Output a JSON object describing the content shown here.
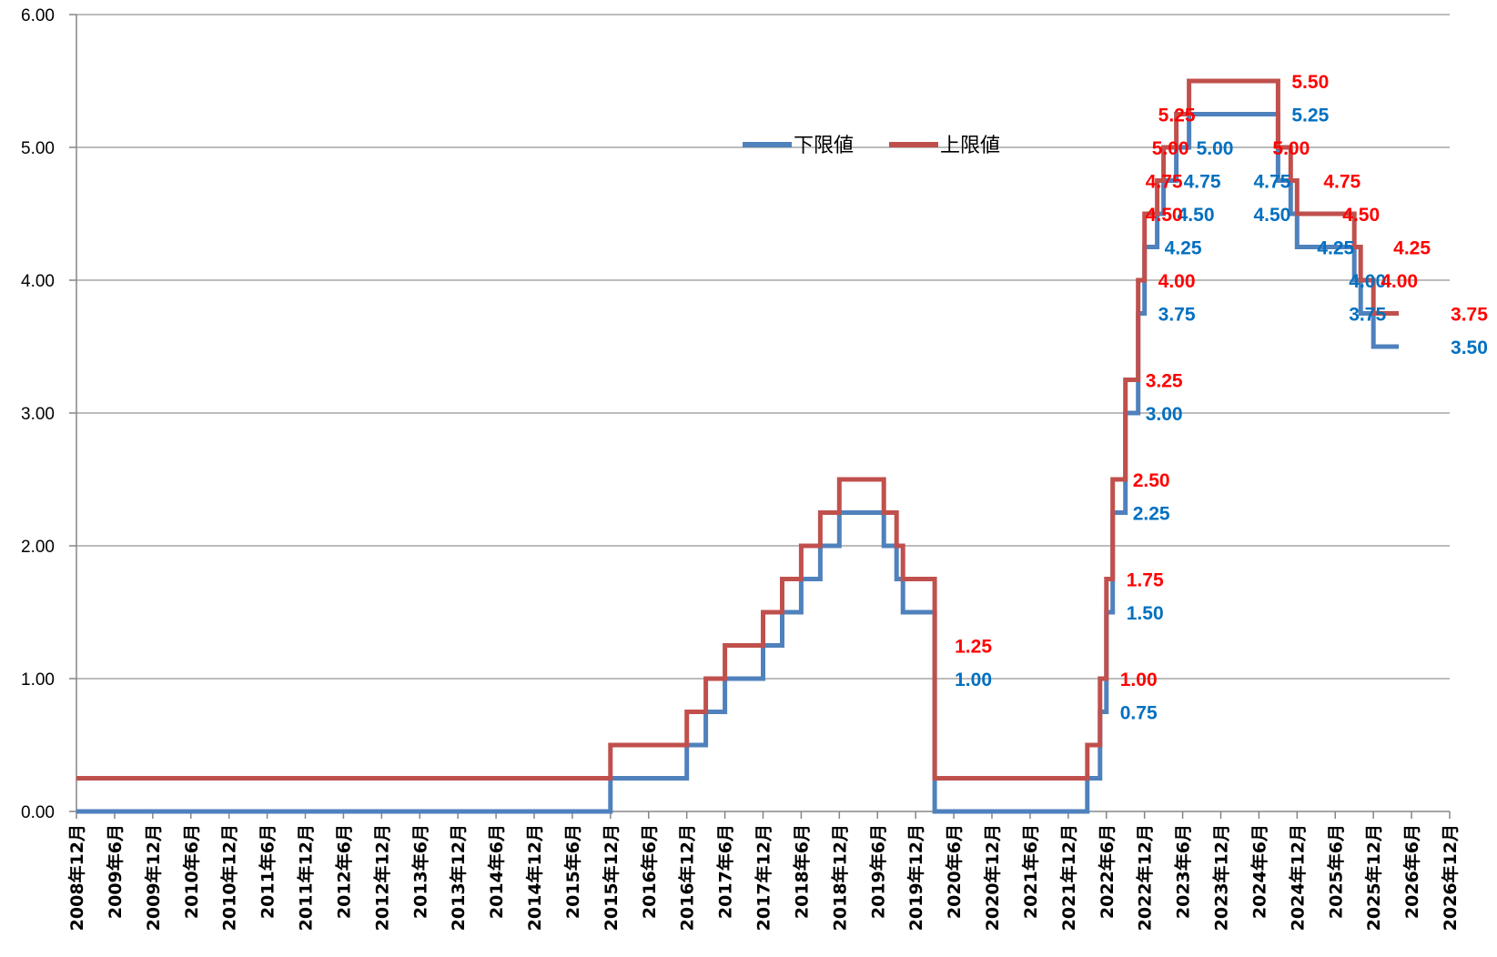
{
  "chart_data": {
    "type": "line",
    "step": true,
    "ylim": [
      0,
      6
    ],
    "yticks": [
      "0.00",
      "1.00",
      "2.00",
      "3.00",
      "4.00",
      "5.00",
      "6.00"
    ],
    "x_start": "2008-12",
    "x_end": "2026-12",
    "xticks": [
      "2008年12月",
      "2009年6月",
      "2009年12月",
      "2010年6月",
      "2010年12月",
      "2011年6月",
      "2011年12月",
      "2012年6月",
      "2012年12月",
      "2013年6月",
      "2013年12月",
      "2014年6月",
      "2014年12月",
      "2015年6月",
      "2015年12月",
      "2016年6月",
      "2016年12月",
      "2017年6月",
      "2017年12月",
      "2018年6月",
      "2018年12月",
      "2019年6月",
      "2019年12月",
      "2020年6月",
      "2020年12月",
      "2021年6月",
      "2021年12月",
      "2022年6月",
      "2022年12月",
      "2023年6月",
      "2023年12月",
      "2024年6月",
      "2024年12月",
      "2025年6月",
      "2025年12月",
      "2026年6月",
      "2026年12月"
    ],
    "grid": true,
    "legend_position": "top-center",
    "series": [
      {
        "name": "下限値",
        "color": "#4F81BD",
        "label_color": "#0070C0",
        "points": [
          [
            "2008-12",
            0.0
          ],
          [
            "2015-12",
            0.25
          ],
          [
            "2016-12",
            0.5
          ],
          [
            "2017-03",
            0.75
          ],
          [
            "2017-06",
            1.0
          ],
          [
            "2017-12",
            1.25
          ],
          [
            "2018-03",
            1.5
          ],
          [
            "2018-06",
            1.75
          ],
          [
            "2018-09",
            2.0
          ],
          [
            "2018-12",
            2.25
          ],
          [
            "2019-07",
            2.0
          ],
          [
            "2019-09",
            1.75
          ],
          [
            "2019-10",
            1.5
          ],
          [
            "2020-03",
            1.0
          ],
          [
            "2020-03",
            0.0
          ],
          [
            "2022-03",
            0.25
          ],
          [
            "2022-05",
            0.75
          ],
          [
            "2022-06",
            1.5
          ],
          [
            "2022-07",
            2.25
          ],
          [
            "2022-09",
            3.0
          ],
          [
            "2022-11",
            3.75
          ],
          [
            "2022-12",
            4.25
          ],
          [
            "2023-02",
            4.5
          ],
          [
            "2023-03",
            4.75
          ],
          [
            "2023-05",
            5.0
          ],
          [
            "2023-07",
            5.25
          ],
          [
            "2024-09",
            4.75
          ],
          [
            "2024-11",
            4.5
          ],
          [
            "2024-12",
            4.25
          ],
          [
            "2025-09",
            4.0
          ],
          [
            "2025-10",
            3.75
          ],
          [
            "2025-12",
            3.5
          ],
          [
            "2026-04",
            3.5
          ]
        ],
        "labels": [
          {
            "date": "2020-03",
            "value": 1.0,
            "text": "1.00"
          },
          {
            "date": "2022-05",
            "value": 0.75,
            "text": "0.75"
          },
          {
            "date": "2022-06",
            "value": 1.5,
            "text": "1.50"
          },
          {
            "date": "2022-07",
            "value": 2.25,
            "text": "2.25"
          },
          {
            "date": "2022-09",
            "value": 3.0,
            "text": "3.00"
          },
          {
            "date": "2022-11",
            "value": 3.75,
            "text": "3.75"
          },
          {
            "date": "2022-12",
            "value": 4.25,
            "text": "4.25"
          },
          {
            "date": "2023-02",
            "value": 4.5,
            "text": "4.50"
          },
          {
            "date": "2023-03",
            "value": 4.75,
            "text": "4.75"
          },
          {
            "date": "2023-05",
            "value": 5.0,
            "text": "5.00"
          },
          {
            "date": "2024-08",
            "value": 5.25,
            "text": "5.25"
          },
          {
            "date": "2024-02",
            "value": 4.75,
            "text": "4.75"
          },
          {
            "date": "2024-02",
            "value": 4.5,
            "text": "4.50"
          },
          {
            "date": "2024-12",
            "value": 4.25,
            "text": "4.25"
          },
          {
            "date": "2025-05",
            "value": 4.0,
            "text": "4.00"
          },
          {
            "date": "2025-05",
            "value": 3.75,
            "text": "3.75"
          },
          {
            "date": "2026-09",
            "value": 3.5,
            "text": "3.50"
          }
        ]
      },
      {
        "name": "上限値",
        "color": "#C0504D",
        "label_color": "#FF0000",
        "points": [
          [
            "2008-12",
            0.25
          ],
          [
            "2015-12",
            0.5
          ],
          [
            "2016-12",
            0.75
          ],
          [
            "2017-03",
            1.0
          ],
          [
            "2017-06",
            1.25
          ],
          [
            "2017-12",
            1.5
          ],
          [
            "2018-03",
            1.75
          ],
          [
            "2018-06",
            2.0
          ],
          [
            "2018-09",
            2.25
          ],
          [
            "2018-12",
            2.5
          ],
          [
            "2019-07",
            2.25
          ],
          [
            "2019-09",
            2.0
          ],
          [
            "2019-10",
            1.75
          ],
          [
            "2020-03",
            1.25
          ],
          [
            "2020-03",
            0.25
          ],
          [
            "2022-03",
            0.5
          ],
          [
            "2022-05",
            1.0
          ],
          [
            "2022-06",
            1.75
          ],
          [
            "2022-07",
            2.5
          ],
          [
            "2022-09",
            3.25
          ],
          [
            "2022-11",
            4.0
          ],
          [
            "2022-12",
            4.5
          ],
          [
            "2023-02",
            4.75
          ],
          [
            "2023-03",
            5.0
          ],
          [
            "2023-05",
            5.25
          ],
          [
            "2023-07",
            5.5
          ],
          [
            "2024-09",
            5.0
          ],
          [
            "2024-11",
            4.75
          ],
          [
            "2024-12",
            4.5
          ],
          [
            "2025-09",
            4.25
          ],
          [
            "2025-10",
            4.0
          ],
          [
            "2025-12",
            3.75
          ],
          [
            "2026-04",
            3.75
          ]
        ],
        "labels": [
          {
            "date": "2020-03",
            "value": 1.25,
            "text": "1.25"
          },
          {
            "date": "2022-05",
            "value": 1.0,
            "text": "1.00"
          },
          {
            "date": "2022-06",
            "value": 1.75,
            "text": "1.75"
          },
          {
            "date": "2022-07",
            "value": 2.5,
            "text": "2.50"
          },
          {
            "date": "2022-09",
            "value": 3.25,
            "text": "3.25"
          },
          {
            "date": "2022-11",
            "value": 4.0,
            "text": "4.00"
          },
          {
            "date": "2022-09",
            "value": 4.5,
            "text": "4.50"
          },
          {
            "date": "2022-09",
            "value": 4.75,
            "text": "4.75"
          },
          {
            "date": "2022-10",
            "value": 5.0,
            "text": "5.00"
          },
          {
            "date": "2022-11",
            "value": 5.25,
            "text": "5.25"
          },
          {
            "date": "2024-08",
            "value": 5.5,
            "text": "5.50"
          },
          {
            "date": "2024-05",
            "value": 5.0,
            "text": "5.00"
          },
          {
            "date": "2025-01",
            "value": 4.75,
            "text": "4.75"
          },
          {
            "date": "2025-04",
            "value": 4.5,
            "text": "4.50"
          },
          {
            "date": "2025-12",
            "value": 4.25,
            "text": "4.25"
          },
          {
            "date": "2025-10",
            "value": 4.0,
            "text": "4.00"
          },
          {
            "date": "2026-09",
            "value": 3.75,
            "text": "3.75"
          }
        ]
      }
    ]
  }
}
